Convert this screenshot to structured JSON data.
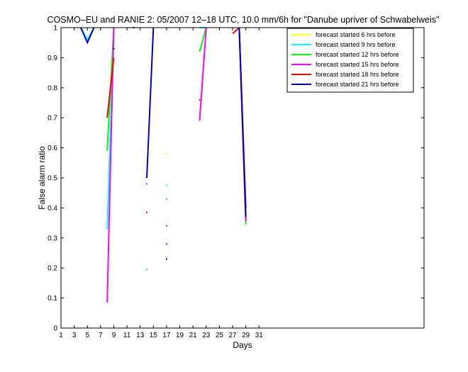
{
  "chart_data": {
    "type": "line",
    "title": "COSMO–EU and RANIE 2: 05/2007 12–18 UTC, 10.0 mm/6h for \"Danube upriver of Schwabelweis\"",
    "xlabel": "Days",
    "ylabel": "False alarm ratio",
    "xlim": [
      1,
      56
    ],
    "ylim": [
      0,
      1
    ],
    "xticks": [
      1,
      3,
      5,
      7,
      9,
      11,
      13,
      15,
      17,
      19,
      21,
      23,
      25,
      27,
      29,
      31
    ],
    "yticks": [
      0,
      0.1,
      0.2,
      0.3,
      0.4,
      0.5,
      0.6,
      0.7,
      0.8,
      0.9,
      1
    ],
    "grid": false,
    "legend_position": "top-right",
    "series": [
      {
        "name": "forecast started 6 hrs before",
        "color": "#ffff00",
        "segments": [
          [
            [
              4,
              1
            ],
            [
              5,
              0.96
            ],
            [
              6,
              1
            ]
          ],
          [
            [
              22,
              1
            ],
            [
              23,
              1
            ]
          ]
        ],
        "points": [
          [
            17,
            0.58
          ]
        ]
      },
      {
        "name": "forecast started 9 hrs before",
        "color": "#00ffff",
        "segments": [
          [
            [
              4,
              1
            ],
            [
              5,
              0.96
            ],
            [
              6,
              1
            ]
          ],
          [
            [
              8,
              0.33
            ],
            [
              9,
              1
            ]
          ],
          [
            [
              22,
              1
            ],
            [
              23,
              1
            ]
          ],
          [
            [
              28,
              1
            ],
            [
              29,
              0.37
            ]
          ]
        ],
        "points": [
          [
            17,
            0.475
          ]
        ]
      },
      {
        "name": "forecast started 12 hrs before",
        "color": "#00ff00",
        "segments": [
          [
            [
              8,
              0.59
            ],
            [
              9,
              1
            ]
          ],
          [
            [
              22,
              0.92
            ],
            [
              23,
              1
            ]
          ],
          [
            [
              28,
              1
            ],
            [
              29,
              0.345
            ]
          ]
        ],
        "points": [
          [
            14,
            0.195
          ],
          [
            17,
            0.43
          ]
        ]
      },
      {
        "name": "forecast started 15 hrs before",
        "color": "#ff00ff",
        "segments": [
          [
            [
              8,
              0.085
            ],
            [
              9,
              1
            ]
          ],
          [
            [
              22,
              0.69
            ],
            [
              23,
              1
            ]
          ],
          [
            [
              28,
              1
            ],
            [
              29,
              0.355
            ]
          ]
        ],
        "points": [
          [
            14,
            0.48
          ],
          [
            17,
            0.34
          ]
        ]
      },
      {
        "name": "forecast started 18 hrs before",
        "color": "#ff0000",
        "segments": [
          [
            [
              8,
              0.7
            ],
            [
              9,
              0.9
            ]
          ],
          [
            [
              27,
              0.98
            ],
            [
              28,
              1
            ]
          ],
          [
            [
              28,
              1
            ],
            [
              29,
              0.4
            ]
          ]
        ],
        "points": [
          [
            14,
            0.385
          ],
          [
            17,
            0.28
          ],
          [
            22,
            0.76
          ]
        ]
      },
      {
        "name": "forecast started 21 hrs before",
        "color": "#0000cc",
        "segments": [
          [
            [
              4,
              1
            ],
            [
              5,
              0.95
            ],
            [
              6,
              1
            ]
          ],
          [
            [
              14,
              0.5
            ],
            [
              15,
              1
            ]
          ],
          [
            [
              28,
              1
            ],
            [
              29,
              0.37
            ]
          ]
        ],
        "points": [
          [
            12,
            1
          ],
          [
            17,
            0.23
          ],
          [
            9,
            0.93
          ]
        ]
      }
    ]
  }
}
